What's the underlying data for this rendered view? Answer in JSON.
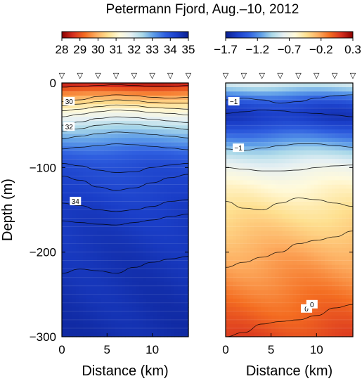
{
  "chart_data": {
    "title": "Petermann Fjord, Aug.–10, 2012",
    "station_marker": "▽",
    "stations_km": [
      0,
      2,
      4,
      6,
      8,
      10,
      12,
      14
    ],
    "panels": [
      {
        "type": "heatmap",
        "variable": "salinity",
        "colorbar": {
          "ticks": [
            28,
            29,
            30,
            31,
            32,
            33,
            34,
            35
          ],
          "tick_labels": [
            "28",
            "29",
            "30",
            "31",
            "32",
            "33",
            "34",
            "35"
          ],
          "range": [
            28,
            35
          ],
          "colors": [
            "#8b0000",
            "#d7301f",
            "#f46d21",
            "#fdae61",
            "#fee090",
            "#fffadb",
            "#e6f0f3",
            "#abd9e9",
            "#5b9be8",
            "#2f5fe0",
            "#1a3ec8",
            "#0b1f8f"
          ]
        },
        "xlabel": "Distance (km)",
        "ylabel": "Depth (m)",
        "xlim": [
          0,
          14
        ],
        "ylim": [
          -300,
          0
        ],
        "xticks": [
          0,
          5,
          10
        ],
        "xtick_labels": [
          "0",
          "5",
          "10"
        ],
        "yticks": [
          0,
          -100,
          -200,
          -300
        ],
        "ytick_labels": [
          "0",
          "−100",
          "−200",
          "−300"
        ],
        "contour_labels": [
          {
            "text": "30",
            "x": 0.8,
            "y": -22
          },
          {
            "text": "32",
            "x": 0.8,
            "y": -52
          },
          {
            "text": "34",
            "x": 1.5,
            "y": -140
          }
        ],
        "profile": {
          "depth": [
            0,
            -10,
            -20,
            -30,
            -40,
            -50,
            -60,
            -70,
            -80,
            -90,
            -100,
            -150,
            -200,
            -300
          ],
          "value": [
            28.3,
            29.3,
            30.2,
            31.0,
            31.7,
            32.3,
            32.8,
            33.2,
            33.6,
            33.9,
            34.1,
            34.4,
            34.55,
            34.7
          ]
        },
        "contours": [
          {
            "level": 29.5,
            "depths": [
              -5,
              -4,
              -3,
              -2,
              -3,
              -4,
              -4,
              -3
            ]
          },
          {
            "level": 30.0,
            "depths": [
              -22,
              -20,
              -16,
              -14,
              -15,
              -17,
              -18,
              -17
            ]
          },
          {
            "level": 30.5,
            "depths": [
              -27,
              -25,
              -22,
              -20,
              -21,
              -23,
              -24,
              -24
            ]
          },
          {
            "level": 31.0,
            "depths": [
              -33,
              -31,
              -28,
              -26,
              -27,
              -29,
              -30,
              -31
            ]
          },
          {
            "level": 31.5,
            "depths": [
              -40,
              -37,
              -34,
              -32,
              -33,
              -35,
              -36,
              -38
            ]
          },
          {
            "level": 32.0,
            "depths": [
              -50,
              -46,
              -42,
              -40,
              -41,
              -43,
              -45,
              -47
            ]
          },
          {
            "level": 32.5,
            "depths": [
              -57,
              -54,
              -50,
              -48,
              -49,
              -51,
              -53,
              -55
            ]
          },
          {
            "level": 33.0,
            "depths": [
              -66,
              -63,
              -60,
              -58,
              -59,
              -61,
              -63,
              -65
            ]
          },
          {
            "level": 33.5,
            "depths": [
              -78,
              -76,
              -74,
              -72,
              -73,
              -75,
              -77,
              -79
            ]
          },
          {
            "level": 34.0,
            "depths": [
              -95,
              -98,
              -103,
              -106,
              -105,
              -100,
              -97,
              -95
            ]
          },
          {
            "level": 34.2,
            "depths": [
              -110,
              -115,
              -123,
              -127,
              -124,
              -118,
              -112,
              -108
            ]
          },
          {
            "level": 34.4,
            "depths": [
              -142,
              -145,
              -150,
              -152,
              -150,
              -146,
              -140,
              -138
            ]
          },
          {
            "level": 34.5,
            "depths": [
              -163,
              -165,
              -167,
              -168,
              -165,
              -162,
              -158,
              -155
            ]
          },
          {
            "level": 34.6,
            "depths": [
              -225,
              -220,
              -222,
              -225,
              -218,
              -212,
              -208,
              -205
            ]
          }
        ]
      },
      {
        "type": "heatmap",
        "variable": "temperature",
        "colorbar": {
          "ticks": [
            -1.7,
            -1.2,
            -0.7,
            -0.2,
            0.3
          ],
          "tick_labels": [
            "−1.7",
            "−1.2",
            "−0.7",
            "−0.2",
            "0.3"
          ],
          "range": [
            -1.7,
            0.3
          ],
          "colors": [
            "#0b1f8f",
            "#1a3ec8",
            "#2f5fe0",
            "#5b9be8",
            "#abd9e9",
            "#e6f0f3",
            "#fffadb",
            "#fee090",
            "#fdae61",
            "#f46d21",
            "#d7301f",
            "#8b0000"
          ]
        },
        "xlabel": "Distance (km)",
        "ylabel": "",
        "xlim": [
          0,
          14
        ],
        "ylim": [
          -300,
          0
        ],
        "xticks": [
          0,
          5,
          10
        ],
        "xtick_labels": [
          "0",
          "5",
          "10"
        ],
        "yticks": [
          0,
          -100,
          -200,
          -300
        ],
        "ytick_labels": [
          "",
          "",
          "",
          ""
        ],
        "contour_labels": [
          {
            "text": "−1",
            "x": 0.9,
            "y": -22
          },
          {
            "text": "−1",
            "x": 1.4,
            "y": -77
          },
          {
            "text": "0",
            "x": 8.9,
            "y": -267
          },
          {
            "text": "0",
            "x": 9.5,
            "y": -262
          }
        ],
        "profile": {
          "depth": [
            0,
            -10,
            -20,
            -30,
            -40,
            -50,
            -60,
            -70,
            -80,
            -90,
            -100,
            -120,
            -150,
            -200,
            -250,
            -300
          ],
          "value": [
            -0.8,
            -1.1,
            -1.35,
            -1.5,
            -1.55,
            -1.45,
            -1.3,
            -1.15,
            -1.0,
            -0.85,
            -0.75,
            -0.6,
            -0.45,
            -0.25,
            -0.1,
            0.05
          ]
        },
        "contours": [
          {
            "level": -1.0,
            "depths": [
              -20,
              -18,
              -20,
              -24,
              -22,
              -18,
              -15,
              -14
            ]
          },
          {
            "level": -1.5,
            "depths": [
              -36,
              -34,
              -32,
              -33,
              -35,
              -36,
              -38,
              -40
            ]
          },
          {
            "level": -1.0,
            "depths": [
              -78,
              -80,
              -77,
              -74,
              -72,
              -72,
              -74,
              -76
            ]
          },
          {
            "level": -0.7,
            "depths": [
              -100,
              -102,
              -104,
              -104,
              -103,
              -100,
              -98,
              -97
            ]
          },
          {
            "level": -0.5,
            "depths": [
              -140,
              -148,
              -150,
              -142,
              -136,
              -138,
              -142,
              -146
            ]
          },
          {
            "level": -0.2,
            "depths": [
              -218,
              -212,
              -206,
              -200,
              -190,
              -186,
              -182,
              -175
            ]
          },
          {
            "level": 0.0,
            "depths": [
              -300,
              -295,
              -285,
              -282,
              -280,
              -275,
              -266,
              -262
            ]
          }
        ]
      }
    ]
  }
}
